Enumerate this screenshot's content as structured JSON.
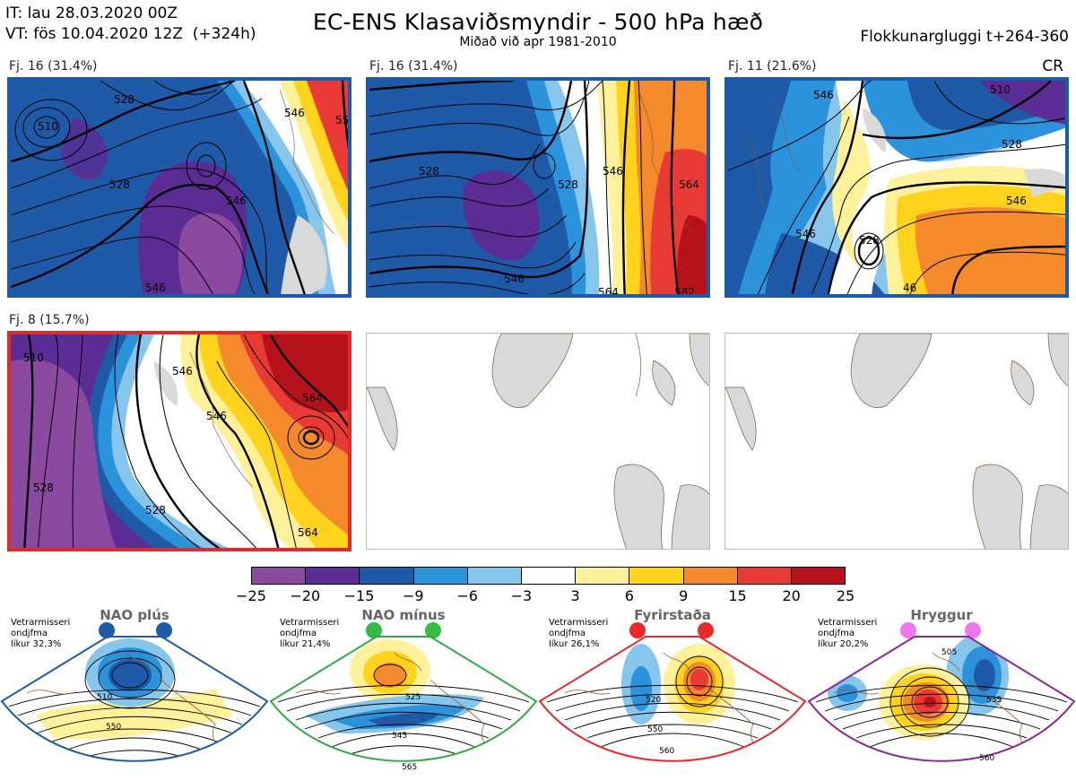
{
  "header": {
    "it_line": "IT: lau 28.03.2020 00Z",
    "vt_line": "VT: fös 10.04.2020 12Z  (+324h)",
    "title": "EC-ENS Klasaviðsmyndir - 500 hPa hæð",
    "subtitle": "Miðað við apr 1981-2010",
    "window": "Flokkunargluggi t+264-360",
    "cr": "CR"
  },
  "clusters": [
    {
      "label": "Fj. 16 (31.4%)",
      "frame_color": "#1d5aa8",
      "contours": [
        "510",
        "528",
        "528",
        "546",
        "546",
        "546",
        "55"
      ]
    },
    {
      "label": "Fj. 16 (31.4%)",
      "frame_color": "#1d5aa8",
      "contours": [
        "528",
        "528",
        "546",
        "546",
        "564",
        "582",
        "564"
      ]
    },
    {
      "label": "Fj. 11 (21.6%)",
      "frame_color": "#1d5aa8",
      "contours": [
        "510",
        "528",
        "528",
        "546",
        "546",
        "546",
        "46"
      ]
    },
    {
      "label": "Fj. 8 (15.7%)",
      "frame_color": "#e32a2a",
      "contours": [
        "510",
        "528",
        "528",
        "546",
        "546",
        "564",
        "564"
      ]
    }
  ],
  "colorbar": {
    "ticks": [
      "−25",
      "−20",
      "−15",
      "−9",
      "−6",
      "−3",
      "3",
      "6",
      "9",
      "15",
      "20",
      "25"
    ],
    "colors": [
      "#8b4aa0",
      "#5a2c94",
      "#1f5aa8",
      "#2b93dc",
      "#86c6ec",
      "#ffffff",
      "#fff19a",
      "#ffd21c",
      "#f48a2c",
      "#ea3a35",
      "#b5121b"
    ]
  },
  "regimes": [
    {
      "name": "NAO plús",
      "note": [
        "Vetrarmisseri",
        "ondjfma",
        "líkur 32,3%"
      ],
      "color": "#1d5aa8",
      "dots": "#1d5aa8",
      "labels": [
        "510",
        "550"
      ]
    },
    {
      "name": "NAO mínus",
      "note": [
        "Vetrarmisseri",
        "ondjfma",
        "líkur 21,4%"
      ],
      "color": "#33aa44",
      "dots": "#33bb44",
      "labels": [
        "525",
        "545",
        "565"
      ]
    },
    {
      "name": "Fyrirstaða",
      "note": [
        "Vetrarmisseri",
        "ondjfma",
        "líkur 26,1%"
      ],
      "color": "#e32a2a",
      "dots": "#e82a2a",
      "labels": [
        "520",
        "550",
        "560"
      ]
    },
    {
      "name": "Hryggur",
      "note": [
        "Vetrarmisseri",
        "ondjfma",
        "líkur 20,2%"
      ],
      "color": "#8a2a90",
      "dots": "#ee77ee",
      "labels": [
        "505",
        "535",
        "560"
      ]
    }
  ]
}
